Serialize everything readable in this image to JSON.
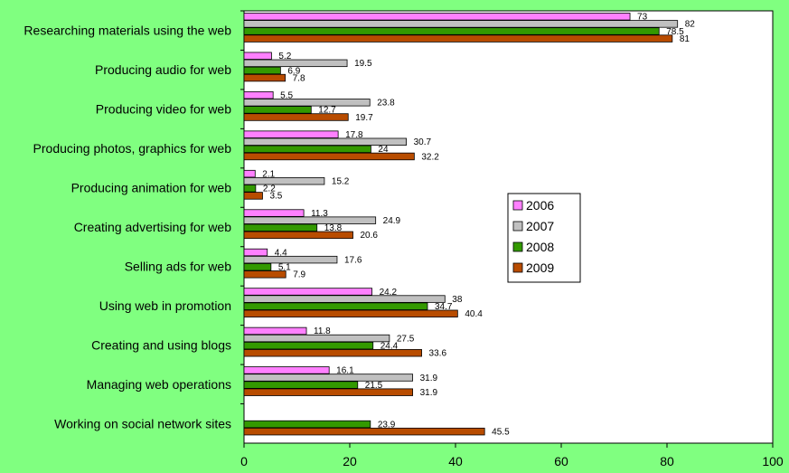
{
  "chart_data": {
    "type": "bar",
    "orientation": "horizontal",
    "categories": [
      "Researching materials using the web",
      "Producing audio for web",
      "Producing video for web",
      "Producing photos, graphics for web",
      "Producing animation for web",
      "Creating advertising for web",
      "Selling ads for web",
      "Using web in promotion",
      "Creating and using blogs",
      "Managing web operations",
      "Working on social network sites"
    ],
    "series": [
      {
        "name": "2006",
        "color": "#ff80ff",
        "values": [
          73,
          5.2,
          5.5,
          17.8,
          2.1,
          11.3,
          4.4,
          24.2,
          11.8,
          16.1,
          null
        ]
      },
      {
        "name": "2007",
        "color": "#c0c0c0",
        "values": [
          82,
          19.5,
          23.8,
          30.7,
          15.2,
          24.9,
          17.6,
          38,
          27.5,
          31.9,
          null
        ]
      },
      {
        "name": "2008",
        "color": "#339900",
        "values": [
          78.5,
          6.9,
          12.7,
          24,
          2.2,
          13.8,
          5.1,
          34.7,
          24.4,
          21.5,
          23.9
        ]
      },
      {
        "name": "2009",
        "color": "#b84c00",
        "values": [
          81,
          7.8,
          19.7,
          32.2,
          3.5,
          20.6,
          7.9,
          40.4,
          33.6,
          31.9,
          45.5
        ]
      }
    ],
    "xlim": [
      0,
      100
    ],
    "xticks": [
      0,
      20,
      40,
      60,
      80,
      100
    ],
    "grid": false,
    "legend_position": "right-center"
  }
}
